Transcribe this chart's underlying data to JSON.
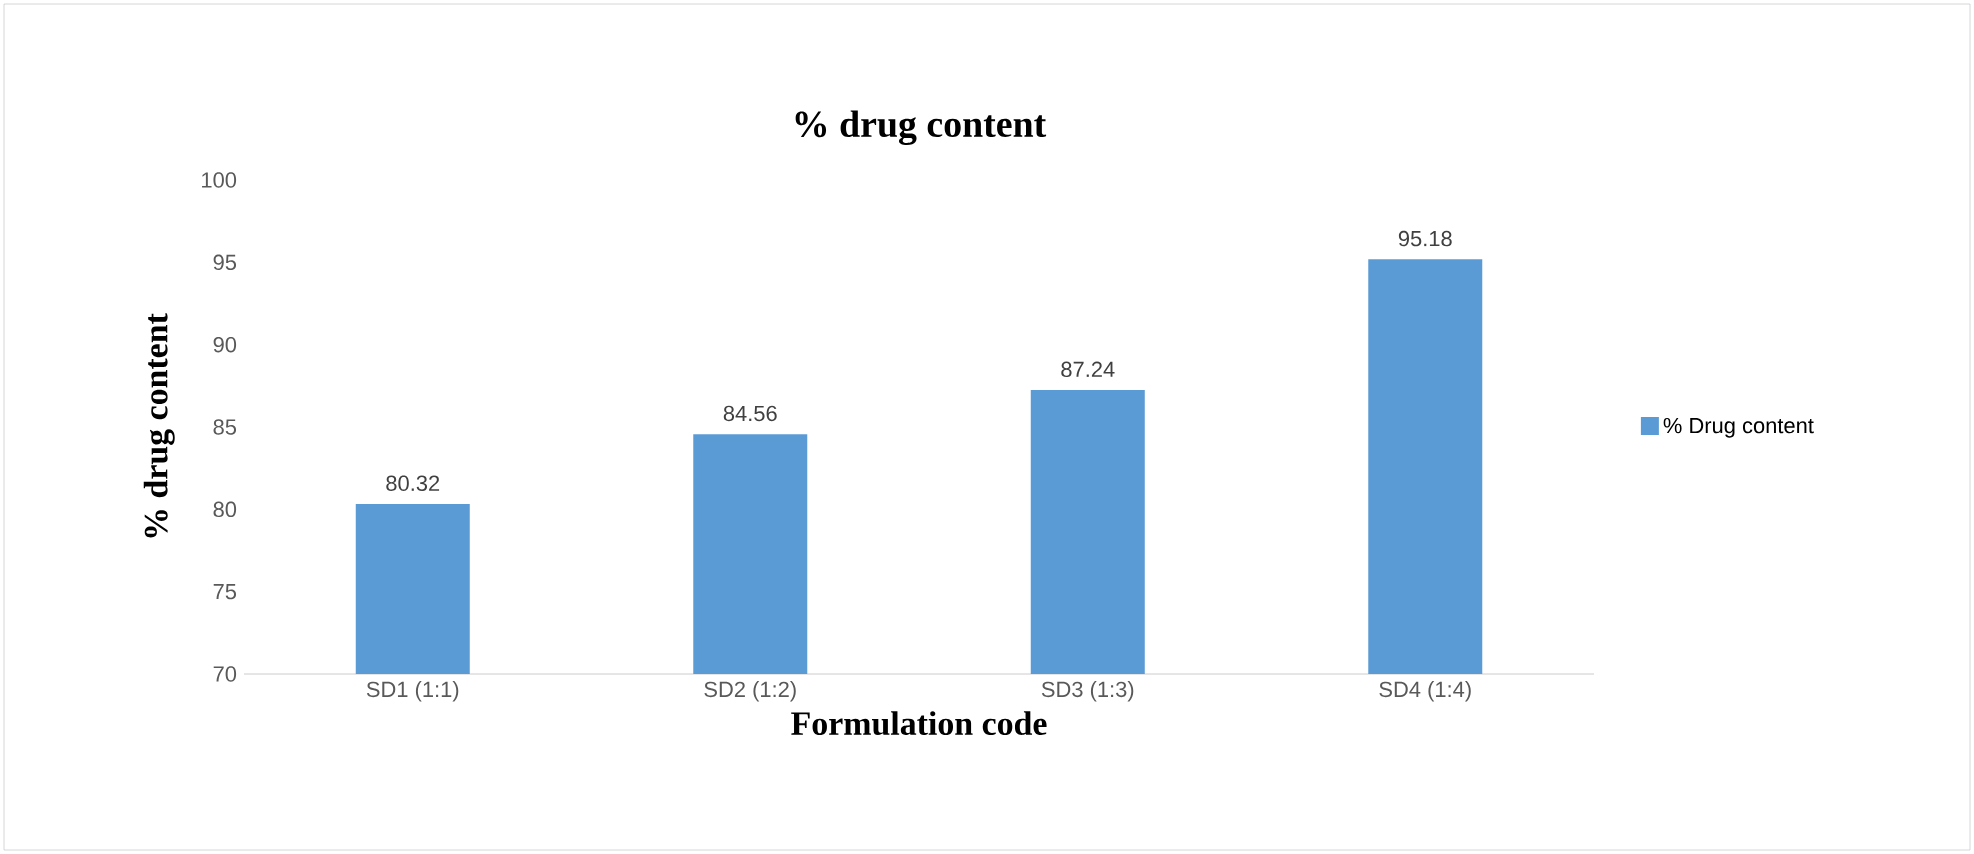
{
  "chart_data": {
    "type": "bar",
    "title": "% drug content",
    "xlabel": "Formulation code",
    "ylabel": "% drug content",
    "categories": [
      "SD1 (1:1)",
      "SD2 (1:2)",
      "SD3 (1:3)",
      "SD4 (1:4)"
    ],
    "series": [
      {
        "name": "% Drug content",
        "color": "#5b9bd5",
        "values": [
          80.32,
          84.56,
          87.24,
          95.18
        ]
      }
    ],
    "ylim": [
      70,
      100
    ],
    "yticks": [
      70,
      75,
      80,
      85,
      90,
      95,
      100
    ],
    "data_labels": true,
    "legend": "right",
    "grid": false
  }
}
